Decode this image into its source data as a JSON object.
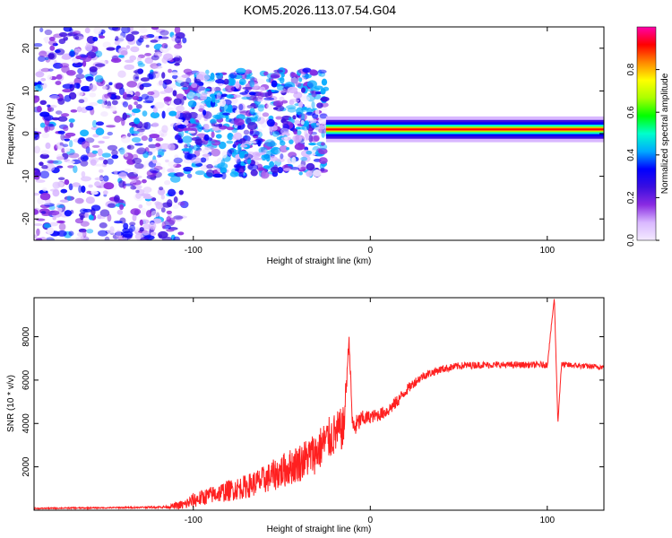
{
  "title": "KOM5.2026.113.07.54.G04",
  "chart_data": [
    {
      "type": "heatmap",
      "xlabel": "Height of straight line (km)",
      "ylabel": "Frequency (Hz)",
      "xlim": [
        -190,
        132
      ],
      "ylim": [
        -25,
        25
      ],
      "xticks": [
        -100,
        0,
        100
      ],
      "yticks": [
        -20,
        -10,
        0,
        10,
        20
      ],
      "colorbar": {
        "label": "Normalized spectral amplitude",
        "range": [
          0,
          1
        ],
        "ticks": [
          0.0,
          0.2,
          0.4,
          0.6,
          0.8
        ],
        "tick_labels": [
          "0.0",
          "0.2",
          "0.4",
          "0.6",
          "0.8"
        ],
        "colors": [
          "#f4eaff",
          "#d9b8ff",
          "#8a2be2",
          "#3a0ee0",
          "#0000ff",
          "#00aaff",
          "#00ffcc",
          "#00ff00",
          "#aaff00",
          "#ffff00",
          "#ff8800",
          "#ff0000",
          "#ff00aa"
        ]
      },
      "features": [
        {
          "x_range": [
            -190,
            -105
          ],
          "f_range": [
            -25,
            25
          ],
          "level": 0.25,
          "description": "diffuse noise"
        },
        {
          "x_range": [
            -105,
            -25
          ],
          "f_range": [
            -10,
            15
          ],
          "level": 0.35,
          "description": "scattered energy"
        },
        {
          "x_range": [
            -25,
            132
          ],
          "f_range": [
            -1,
            3
          ],
          "level": 0.75,
          "description": "narrow carrier line near 1-2 Hz"
        }
      ]
    },
    {
      "type": "line",
      "xlabel": "Height of straight line (km)",
      "ylabel": "SNR (10 * v/v)",
      "xlim": [
        -190,
        132
      ],
      "ylim": [
        0,
        9800
      ],
      "xticks": [
        -100,
        0,
        100
      ],
      "yticks": [
        2000,
        4000,
        6000,
        8000
      ],
      "series": [
        {
          "color": "#ff2020",
          "x": [
            -190,
            -170,
            -150,
            -130,
            -115,
            -105,
            -100,
            -90,
            -80,
            -70,
            -60,
            -50,
            -40,
            -30,
            -25,
            -20,
            -15,
            -12,
            -10,
            -8,
            -5,
            0,
            5,
            10,
            15,
            20,
            25,
            30,
            40,
            50,
            60,
            70,
            80,
            90,
            100,
            104,
            106,
            108,
            110,
            120,
            132
          ],
          "y": [
            80,
            100,
            110,
            130,
            150,
            250,
            450,
            700,
            900,
            1100,
            1400,
            1800,
            2200,
            2700,
            3200,
            3500,
            3800,
            7900,
            3800,
            3900,
            4200,
            4300,
            4400,
            4600,
            5000,
            5500,
            5900,
            6200,
            6500,
            6650,
            6700,
            6700,
            6700,
            6700,
            6700,
            9800,
            4000,
            6700,
            6700,
            6650,
            6600
          ],
          "noise_amplitude": [
            30,
            30,
            30,
            40,
            60,
            250,
            350,
            400,
            500,
            550,
            650,
            800,
            900,
            1000,
            1000,
            1000,
            1000,
            200,
            600,
            500,
            400,
            300,
            300,
            300,
            300,
            250,
            220,
            200,
            180,
            170,
            160,
            150,
            150,
            150,
            150,
            0,
            0,
            150,
            150,
            130,
            120
          ]
        }
      ]
    }
  ]
}
